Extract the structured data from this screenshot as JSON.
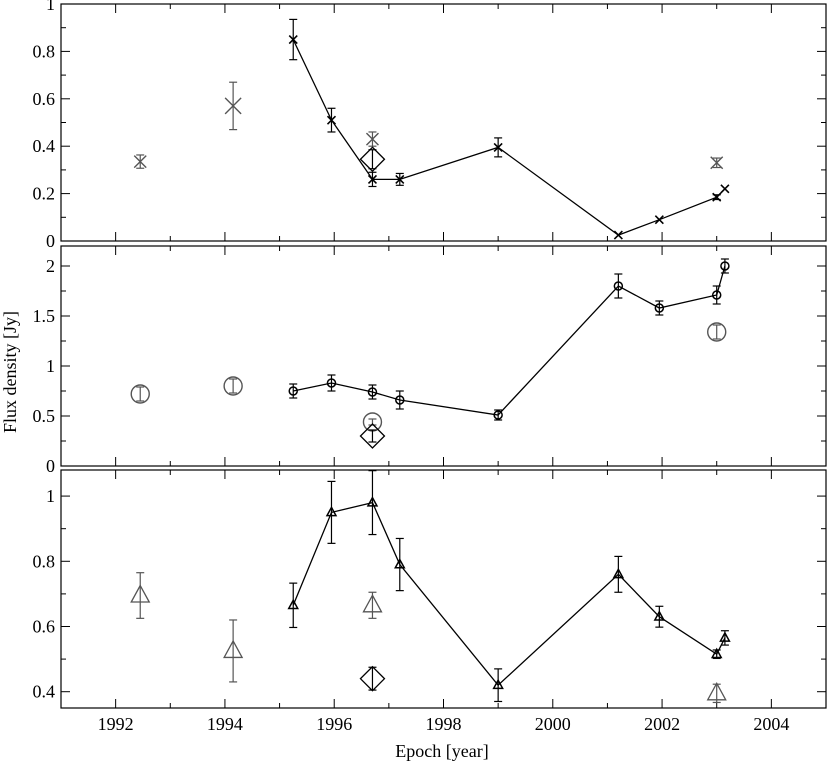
{
  "figure": {
    "xlabel": "Epoch [year]",
    "ylabel": "Flux density [Jy]"
  },
  "chart_data": [
    {
      "type": "scatter",
      "panel": "top",
      "xlim": [
        1991,
        2005
      ],
      "ylim": [
        0,
        1
      ],
      "yticks": [
        0,
        0.2,
        0.4,
        0.6,
        0.8,
        1
      ],
      "ytick_labels": [
        "0",
        "0.2",
        "0.4",
        "0.6",
        "0.8",
        "1"
      ],
      "series": [
        {
          "marker": "x",
          "color": "#000000",
          "connected": true,
          "points": [
            {
              "x": 1995.25,
              "y": 0.85,
              "err": 0.085
            },
            {
              "x": 1995.95,
              "y": 0.51,
              "err": 0.05
            },
            {
              "x": 1996.7,
              "y": 0.26,
              "err": 0.03
            },
            {
              "x": 1997.2,
              "y": 0.26,
              "err": 0.025
            },
            {
              "x": 1999.0,
              "y": 0.395,
              "err": 0.04
            },
            {
              "x": 2001.2,
              "y": 0.025,
              "err": 0
            },
            {
              "x": 2001.95,
              "y": 0.09,
              "err": 0
            },
            {
              "x": 2003.0,
              "y": 0.185,
              "err": 0.01
            },
            {
              "x": 2003.15,
              "y": 0.22,
              "err": 0
            }
          ]
        },
        {
          "marker": "x",
          "color": "#555555",
          "connected": false,
          "points": [
            {
              "x": 1992.45,
              "y": 0.335,
              "err": 0.028,
              "size": "small"
            },
            {
              "x": 1994.15,
              "y": 0.57,
              "err": 0.1,
              "size": "large"
            },
            {
              "x": 1996.7,
              "y": 0.43,
              "err": 0.03,
              "size": "small"
            },
            {
              "x": 2003.0,
              "y": 0.33,
              "err": 0.02,
              "size": "small"
            }
          ]
        },
        {
          "marker": "diamond",
          "color": "#000000",
          "connected": false,
          "points": [
            {
              "x": 1996.7,
              "y": 0.345,
              "err": 0.04
            }
          ]
        }
      ]
    },
    {
      "type": "scatter",
      "panel": "middle",
      "xlim": [
        1991,
        2005
      ],
      "ylim": [
        0,
        2.2
      ],
      "yticks": [
        0,
        0.5,
        1,
        1.5,
        2
      ],
      "ytick_labels": [
        "0",
        "0.5",
        "1",
        "1.5",
        "2"
      ],
      "series": [
        {
          "marker": "circle",
          "color": "#000000",
          "connected": true,
          "points": [
            {
              "x": 1995.25,
              "y": 0.75,
              "err": 0.07
            },
            {
              "x": 1995.95,
              "y": 0.83,
              "err": 0.08
            },
            {
              "x": 1996.7,
              "y": 0.74,
              "err": 0.07
            },
            {
              "x": 1997.2,
              "y": 0.66,
              "err": 0.09
            },
            {
              "x": 1999.0,
              "y": 0.51,
              "err": 0.05
            },
            {
              "x": 2001.2,
              "y": 1.8,
              "err": 0.12
            },
            {
              "x": 2001.95,
              "y": 1.58,
              "err": 0.07
            },
            {
              "x": 2003.0,
              "y": 1.71,
              "err": 0.09
            },
            {
              "x": 2003.15,
              "y": 2.0,
              "err": 0.07
            }
          ]
        },
        {
          "marker": "circle",
          "color": "#555555",
          "connected": false,
          "points": [
            {
              "x": 1992.45,
              "y": 0.72,
              "err": 0.07
            },
            {
              "x": 1994.15,
              "y": 0.8,
              "err": 0.07
            },
            {
              "x": 1996.7,
              "y": 0.44,
              "err": 0.03
            },
            {
              "x": 2003.0,
              "y": 1.34,
              "err": 0.07
            }
          ]
        },
        {
          "marker": "diamond",
          "color": "#000000",
          "connected": false,
          "points": [
            {
              "x": 1996.7,
              "y": 0.3,
              "err": 0.06
            }
          ]
        }
      ]
    },
    {
      "type": "scatter",
      "panel": "bottom",
      "xlim": [
        1991,
        2005
      ],
      "ylim": [
        0.35,
        1.08
      ],
      "yticks": [
        0.4,
        0.6,
        0.8,
        1
      ],
      "ytick_labels": [
        "0.4",
        "0.6",
        "0.8",
        "1"
      ],
      "xticks": [
        1992,
        1994,
        1996,
        1998,
        2000,
        2002,
        2004
      ],
      "xtick_labels": [
        "1992",
        "1994",
        "1996",
        "1998",
        "2000",
        "2002",
        "2004"
      ],
      "series": [
        {
          "marker": "triangle",
          "color": "#000000",
          "connected": true,
          "points": [
            {
              "x": 1995.25,
              "y": 0.665,
              "err": 0.068
            },
            {
              "x": 1995.95,
              "y": 0.95,
              "err": 0.095
            },
            {
              "x": 1996.7,
              "y": 0.98,
              "err": 0.098
            },
            {
              "x": 1997.2,
              "y": 0.79,
              "err": 0.08
            },
            {
              "x": 1999.0,
              "y": 0.42,
              "err": 0.05
            },
            {
              "x": 2001.2,
              "y": 0.76,
              "err": 0.055
            },
            {
              "x": 2001.95,
              "y": 0.63,
              "err": 0.032
            },
            {
              "x": 2003.0,
              "y": 0.515,
              "err": 0.013
            },
            {
              "x": 2003.15,
              "y": 0.565,
              "err": 0.022
            }
          ]
        },
        {
          "marker": "triangle",
          "color": "#555555",
          "connected": false,
          "points": [
            {
              "x": 1992.45,
              "y": 0.695,
              "err": 0.07
            },
            {
              "x": 1994.15,
              "y": 0.525,
              "err": 0.095
            },
            {
              "x": 1996.7,
              "y": 0.665,
              "err": 0.04
            },
            {
              "x": 2003.0,
              "y": 0.395,
              "err": 0.028
            }
          ]
        },
        {
          "marker": "diamond",
          "color": "#000000",
          "connected": false,
          "points": [
            {
              "x": 1996.7,
              "y": 0.44,
              "err": 0.035
            }
          ]
        }
      ]
    }
  ]
}
